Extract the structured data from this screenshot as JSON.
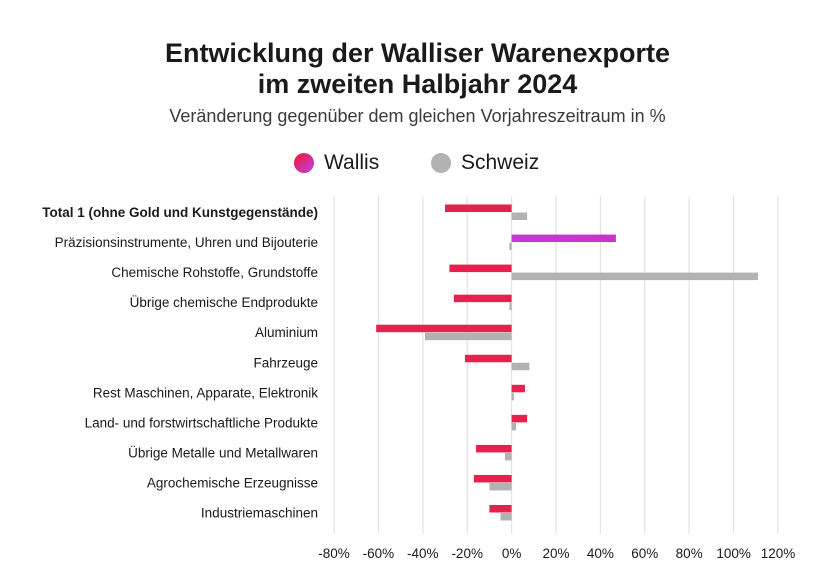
{
  "title_line1": "Entwicklung der Walliser Warenexporte",
  "title_line2": "im zweiten Halbjahr 2024",
  "subtitle": "Veränderung gegenüber dem gleichen Vorjahreszeitraum in %",
  "legend": [
    {
      "label": "Wallis",
      "color": "#e8204e",
      "color2": "#c13ad3"
    },
    {
      "label": "Schweiz",
      "color": "#b1b3b1"
    }
  ],
  "chart_data": {
    "type": "bar",
    "orientation": "horizontal",
    "categories": [
      "Total 1 (ohne Gold und Kunstgegenstände)",
      "Präzisionsinstrumente, Uhren und Bijouterie",
      "Chemische Rohstoffe, Grundstoffe",
      "Übrige chemische Endprodukte",
      "Aluminium",
      "Fahrzeuge",
      "Rest Maschinen, Apparate, Elektronik",
      "Land- und forstwirtschaftliche Produkte",
      "Übrige Metalle und Metallwaren",
      "Agrochemische Erzeugnisse",
      "Industriemaschinen"
    ],
    "bold_categories": [
      0
    ],
    "series": [
      {
        "name": "Wallis",
        "color": "#e8204e",
        "highlight_color": "#c13ad3",
        "highlight_index": 1,
        "values": [
          -30,
          47,
          -28,
          -26,
          -61,
          -21,
          6,
          7,
          -16,
          -17,
          -10
        ]
      },
      {
        "name": "Schweiz",
        "color": "#b1b3b1",
        "values": [
          7,
          -1,
          111,
          -1,
          -39,
          8,
          1,
          2,
          -3,
          -10,
          -5
        ]
      }
    ],
    "xlim": [
      -80,
      120
    ],
    "xticks": [
      -80,
      -60,
      -40,
      -20,
      0,
      20,
      40,
      60,
      80,
      100,
      120
    ],
    "xtick_labels": [
      "-80%",
      "-60%",
      "-40%",
      "-20%",
      "0%",
      "20%",
      "40%",
      "60%",
      "80%",
      "100%",
      "120%"
    ],
    "grid": "vertical"
  }
}
